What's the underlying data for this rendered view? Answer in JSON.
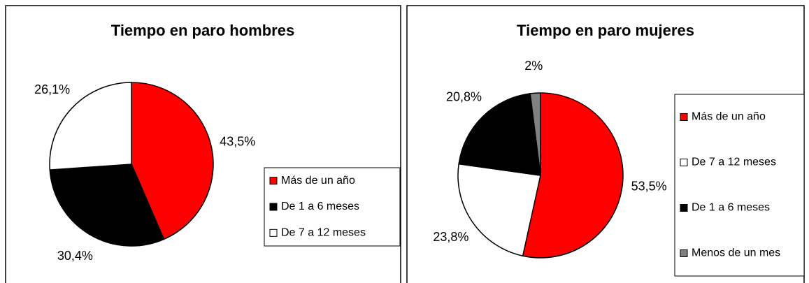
{
  "chart_data": [
    {
      "type": "pie",
      "title": "Tiempo en paro hombres",
      "categories": [
        "Más de un año",
        "De 1 a 6 meses",
        "De 7 a 12 meses"
      ],
      "values": [
        43.5,
        30.4,
        26.1
      ],
      "value_labels": [
        "43,5%",
        "30,4%",
        "26,1%"
      ],
      "colors": [
        "#ff0000",
        "#000000",
        "#ffffff"
      ],
      "legend": "right"
    },
    {
      "type": "pie",
      "title": "Tiempo en paro mujeres",
      "categories": [
        "Más de un año",
        "De 7 a 12 meses",
        "De 1 a 6 meses",
        "Menos de un mes"
      ],
      "values": [
        53.5,
        23.8,
        20.8,
        2
      ],
      "value_labels": [
        "53,5%",
        "23,8%",
        "20,8%",
        "2%"
      ],
      "colors": [
        "#ff0000",
        "#ffffff",
        "#000000",
        "#808080"
      ],
      "legend": "right"
    }
  ]
}
